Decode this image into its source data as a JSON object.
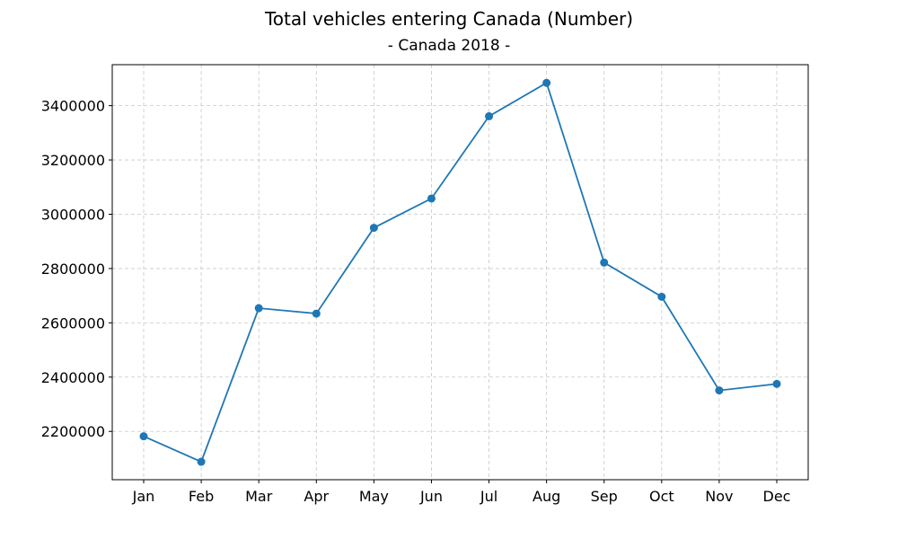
{
  "chart_data": {
    "type": "line",
    "title": "Total vehicles entering Canada (Number)",
    "subtitle": "- Canada 2018 -",
    "categories": [
      "Jan",
      "Feb",
      "Mar",
      "Apr",
      "May",
      "Jun",
      "Jul",
      "Aug",
      "Sep",
      "Oct",
      "Nov",
      "Dec"
    ],
    "series": [
      {
        "values": [
          2182000,
          2088000,
          2654000,
          2634000,
          2950000,
          3058000,
          3361000,
          3484000,
          2822000,
          2696000,
          2351000,
          2375000
        ]
      }
    ],
    "yticks": [
      2200000,
      2400000,
      2600000,
      2800000,
      3000000,
      3200000,
      3400000
    ],
    "ylim": [
      2022000,
      3551000
    ],
    "grid": true,
    "line_color": "#1f77b4",
    "marker": "circle"
  }
}
